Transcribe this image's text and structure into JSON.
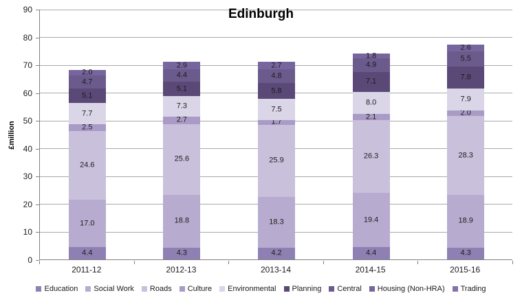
{
  "chart_data": {
    "type": "bar",
    "stacked": true,
    "title": "Edinburgh",
    "ylabel": "£million",
    "xlabel": "",
    "categories": [
      "2011-12",
      "2012-13",
      "2013-14",
      "2014-15",
      "2015-16"
    ],
    "series": [
      {
        "name": "Education",
        "color": "#8F80B3",
        "values": [
          4.4,
          4.3,
          4.2,
          4.4,
          4.3
        ]
      },
      {
        "name": "Social Work",
        "color": "#B7ACD0",
        "values": [
          17.0,
          18.8,
          18.3,
          19.4,
          18.9
        ]
      },
      {
        "name": "Roads",
        "color": "#C9C0DB",
        "values": [
          24.6,
          25.6,
          25.9,
          26.3,
          28.3
        ]
      },
      {
        "name": "Culture",
        "color": "#A99BC6",
        "values": [
          2.5,
          2.7,
          1.7,
          2.1,
          2.0
        ]
      },
      {
        "name": "Environmental",
        "color": "#DAD5E7",
        "values": [
          7.7,
          7.3,
          7.5,
          8.0,
          7.9
        ]
      },
      {
        "name": "Planning",
        "color": "#5A4877",
        "values": [
          5.1,
          5.1,
          5.8,
          7.1,
          7.8
        ]
      },
      {
        "name": "Central",
        "color": "#6B5A8C",
        "values": [
          4.7,
          4.4,
          4.8,
          4.9,
          5.5
        ]
      },
      {
        "name": "Housing (Non-HRA)",
        "color": "#77659D",
        "values": [
          2.0,
          2.9,
          2.7,
          1.8,
          2.6
        ]
      },
      {
        "name": "Trading",
        "color": "#8473A8",
        "values": [
          0,
          0,
          0,
          0,
          0
        ]
      }
    ],
    "totals": [
      68.0,
      71.1,
      70.9,
      74.0,
      77.3
    ],
    "ylim": [
      0,
      90
    ],
    "yticks": [
      0,
      10,
      20,
      30,
      40,
      50,
      60,
      70,
      80,
      90
    ],
    "grid": true,
    "legend_position": "bottom"
  }
}
